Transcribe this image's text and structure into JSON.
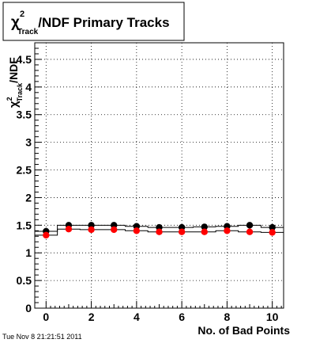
{
  "title": {
    "chi_symbol": "χ",
    "superscript": "2",
    "subscript": "Track",
    "rest": "/NDF Primary Tracks"
  },
  "timestamp": "Tue Nov  8 21:21:51 2011",
  "chart_data": {
    "type": "scatter",
    "title": "χ²_Track/NDF Primary Tracks",
    "xlabel": "No. of Bad Points",
    "ylabel": {
      "chi_symbol": "χ",
      "superscript": "2",
      "subscript": "Track",
      "rest": "/NDF"
    },
    "xlim": [
      -0.5,
      10.5
    ],
    "ylim": [
      0,
      4.8
    ],
    "x_ticks": [
      0,
      2,
      4,
      6,
      8,
      10
    ],
    "y_ticks": [
      0,
      0.5,
      1,
      1.5,
      2,
      2.5,
      3,
      3.5,
      4,
      4.5
    ],
    "y_tick_labels": [
      "0",
      "0.5",
      "1",
      "1.5",
      "2",
      "2.5",
      "3",
      "3.5",
      "4",
      "4.5"
    ],
    "x_tick_labels": [
      "0",
      "2",
      "4",
      "6",
      "8",
      "10"
    ],
    "grid": true,
    "series": [
      {
        "color": "#000000",
        "x": [
          0,
          1,
          2,
          3,
          4,
          5,
          6,
          7,
          8,
          9,
          10
        ],
        "y": [
          1.39,
          1.5,
          1.5,
          1.5,
          1.48,
          1.46,
          1.46,
          1.47,
          1.48,
          1.5,
          1.46
        ]
      },
      {
        "color": "#ff0000",
        "x": [
          0,
          1,
          2,
          3,
          4,
          5,
          6,
          7,
          8,
          9,
          10
        ],
        "y": [
          1.32,
          1.43,
          1.42,
          1.42,
          1.4,
          1.38,
          1.38,
          1.38,
          1.4,
          1.38,
          1.37
        ]
      }
    ]
  }
}
